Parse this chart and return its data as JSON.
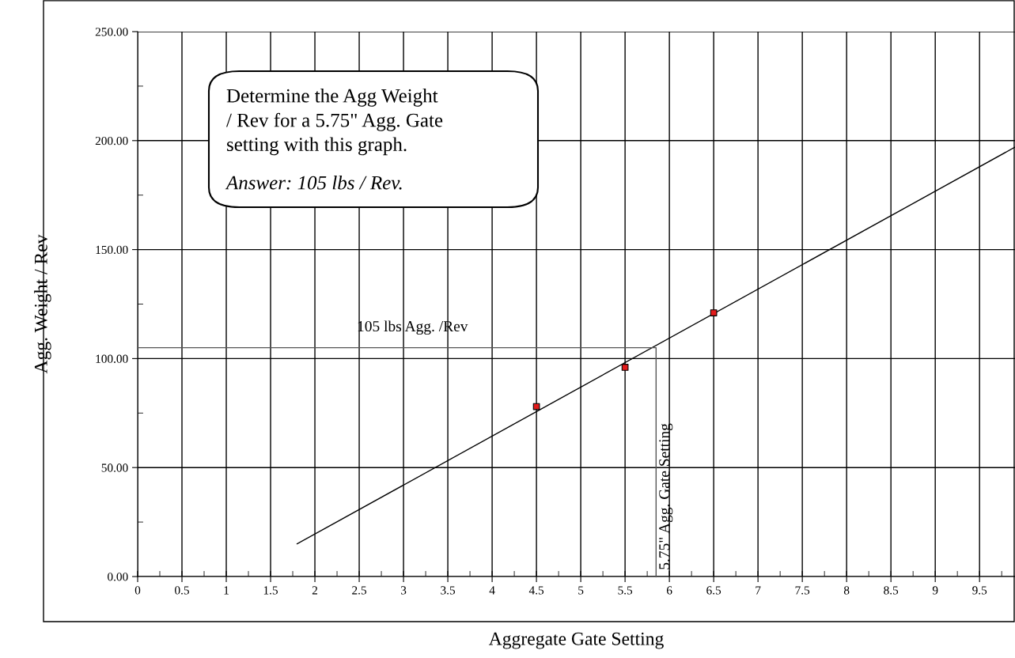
{
  "chart_data": {
    "type": "scatter",
    "xlabel": "Aggregate Gate Setting",
    "ylabel": "Agg. Weight / Rev",
    "xlim": [
      0,
      9.9
    ],
    "ylim": [
      0,
      250
    ],
    "xticks": [
      0,
      0.5,
      1,
      1.5,
      2,
      2.5,
      3,
      3.5,
      4,
      4.5,
      5,
      5.5,
      6,
      6.5,
      7,
      7.5,
      8,
      8.5,
      9,
      9.5
    ],
    "yticks": [
      {
        "value": 0,
        "label": "0.00"
      },
      {
        "value": 50,
        "label": "50.00"
      },
      {
        "value": 100,
        "label": "100.00"
      },
      {
        "value": 150,
        "label": "150.00"
      },
      {
        "value": 200,
        "label": "200.00"
      },
      {
        "value": 250,
        "label": "250.00"
      }
    ],
    "grid": true,
    "series": [
      {
        "color": "#e31b1b",
        "marker": "square",
        "x": [
          4.5,
          5.5,
          6.5
        ],
        "values": [
          78,
          96,
          121
        ]
      },
      {
        "type": "line",
        "marker": "none",
        "color": "#000000",
        "x": [
          1.8,
          9.9
        ],
        "values": [
          15,
          197
        ]
      },
      {
        "type": "line",
        "marker": "none",
        "color": "#555555",
        "x": [
          0,
          5.85,
          5.85
        ],
        "values": [
          105,
          105,
          0
        ]
      }
    ],
    "annotations": [
      {
        "text": "105 lbs Agg. /Rev",
        "x": 3.1,
        "y": 105
      },
      {
        "text": "5.75\" Agg. Gate Setting",
        "x": 5.85,
        "y": 0
      },
      "Determine the Agg Weight\n/ Rev for a 5.75\" Agg. Gate\nsetting with this graph.",
      "Answer: 105 lbs / Rev."
    ]
  }
}
